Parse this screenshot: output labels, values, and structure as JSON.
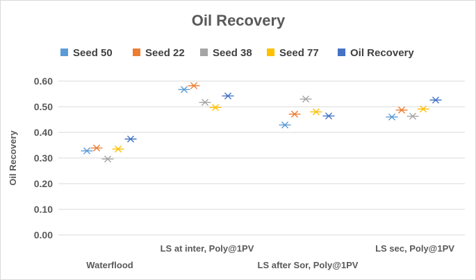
{
  "chart_data": {
    "type": "scatter",
    "title": "Oil Recovery",
    "xlabel": "",
    "ylabel": "Oil Recovery",
    "ylim": [
      0,
      0.6
    ],
    "yticks": [
      "0.00",
      "0.10",
      "0.20",
      "0.30",
      "0.40",
      "0.50",
      "0.60"
    ],
    "grid": true,
    "legend_position": "top",
    "categories": [
      "Waterflood",
      "LS at inter, Poly@1PV",
      "LS after Sor, Poly@1PV",
      "LS sec, Poly@1PV"
    ],
    "series": [
      {
        "name": "Seed 50",
        "color": "#5b9bd5",
        "values": [
          0.328,
          0.567,
          0.429,
          0.46
        ]
      },
      {
        "name": "Seed 22",
        "color": "#ed7d31",
        "values": [
          0.339,
          0.582,
          0.471,
          0.487
        ]
      },
      {
        "name": "Seed 38",
        "color": "#a5a5a5",
        "values": [
          0.296,
          0.517,
          0.53,
          0.463
        ]
      },
      {
        "name": "Seed 77",
        "color": "#ffc000",
        "values": [
          0.335,
          0.497,
          0.48,
          0.491
        ]
      },
      {
        "name": "Oil Recovery",
        "color": "#4472c4",
        "values": [
          0.374,
          0.542,
          0.464,
          0.526
        ]
      }
    ]
  }
}
